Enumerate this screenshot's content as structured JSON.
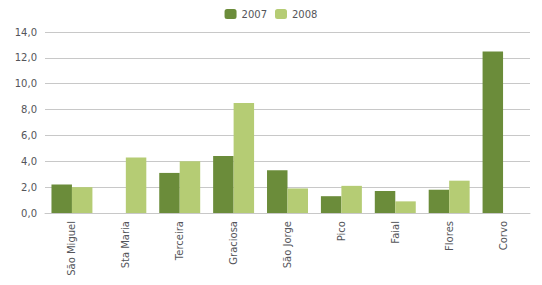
{
  "chart_data": {
    "type": "bar",
    "categories": [
      "São Miguel",
      "Sta Maria",
      "Terceira",
      "Graciosa",
      "São Jorge",
      "Pico",
      "Faial",
      "Flores",
      "Corvo"
    ],
    "series": [
      {
        "name": "2007",
        "color": "#6b8c3a",
        "values": [
          2.2,
          0.0,
          3.1,
          4.4,
          3.3,
          1.3,
          1.7,
          1.8,
          12.5
        ]
      },
      {
        "name": "2008",
        "color": "#b5cc74",
        "values": [
          2.0,
          4.3,
          4.0,
          8.5,
          1.9,
          2.1,
          0.9,
          2.5,
          0.0
        ]
      }
    ],
    "ylim": [
      0,
      14
    ],
    "yticks": [
      {
        "value": 0.0,
        "label": "0,0"
      },
      {
        "value": 2.0,
        "label": "2,0"
      },
      {
        "value": 4.0,
        "label": "4,0"
      },
      {
        "value": 6.0,
        "label": "6,0"
      },
      {
        "value": 8.0,
        "label": "8,0"
      },
      {
        "value": 10.0,
        "label": "10,0"
      },
      {
        "value": 12.0,
        "label": "12,0"
      },
      {
        "value": 14.0,
        "label": "14,0"
      }
    ],
    "grid": true,
    "legend": "top"
  }
}
